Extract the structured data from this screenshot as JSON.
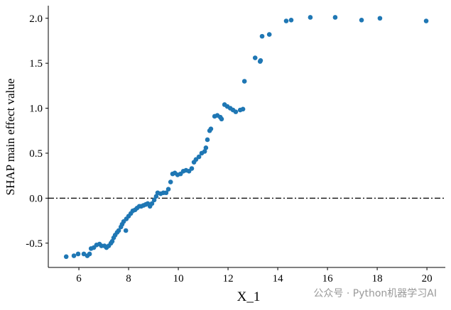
{
  "chart_data": {
    "type": "scatter",
    "xlabel": "X_1",
    "ylabel": "SHAP main effect value",
    "watermark": "公众号 · Python机器学习AI",
    "color": "#1f77b4",
    "hline": 0,
    "x": [
      5.49,
      5.8,
      5.97,
      6.2,
      6.34,
      6.43,
      6.49,
      6.6,
      6.71,
      6.83,
      6.91,
      7.03,
      7.11,
      7.2,
      7.29,
      7.34,
      7.4,
      7.46,
      7.54,
      7.6,
      7.69,
      7.74,
      7.8,
      7.89,
      7.91,
      8.0,
      8.09,
      8.17,
      8.26,
      8.34,
      8.43,
      8.51,
      8.6,
      8.69,
      8.77,
      8.86,
      8.94,
      9.03,
      9.11,
      9.17,
      9.29,
      9.4,
      9.51,
      9.6,
      9.69,
      9.77,
      9.86,
      9.97,
      10.09,
      10.2,
      10.31,
      10.43,
      10.54,
      10.63,
      10.71,
      10.83,
      10.94,
      11.06,
      11.11,
      11.17,
      11.26,
      11.31,
      11.46,
      11.57,
      11.69,
      11.74,
      11.86,
      11.97,
      12.09,
      12.2,
      12.31,
      12.49,
      12.6,
      12.66,
      13.09,
      13.29,
      13.31,
      13.37,
      13.66,
      14.34,
      14.54,
      15.31,
      16.31,
      17.37,
      18.11,
      19.97
    ],
    "values": [
      -0.65,
      -0.64,
      -0.62,
      -0.62,
      -0.64,
      -0.62,
      -0.56,
      -0.55,
      -0.52,
      -0.51,
      -0.53,
      -0.53,
      -0.55,
      -0.53,
      -0.5,
      -0.48,
      -0.44,
      -0.41,
      -0.38,
      -0.36,
      -0.32,
      -0.29,
      -0.26,
      -0.36,
      -0.23,
      -0.2,
      -0.17,
      -0.14,
      -0.13,
      -0.11,
      -0.09,
      -0.09,
      -0.08,
      -0.07,
      -0.06,
      -0.09,
      -0.06,
      -0.02,
      0.02,
      0.06,
      0.05,
      0.06,
      0.06,
      0.1,
      0.18,
      0.27,
      0.28,
      0.26,
      0.27,
      0.3,
      0.31,
      0.3,
      0.33,
      0.4,
      0.43,
      0.46,
      0.5,
      0.52,
      0.56,
      0.65,
      0.75,
      0.77,
      0.91,
      0.92,
      0.9,
      0.88,
      1.04,
      1.02,
      1.0,
      0.98,
      0.96,
      0.98,
      0.99,
      1.3,
      1.56,
      1.52,
      1.53,
      1.8,
      1.82,
      1.97,
      1.98,
      2.01,
      2.01,
      1.98,
      2.0,
      1.97
    ],
    "xlim": [
      4.77,
      20.74
    ],
    "ylim": [
      -0.77,
      2.14
    ],
    "xticks": [
      6,
      8,
      10,
      12,
      14,
      16,
      18,
      20
    ],
    "yticks": [
      {
        "value": -0.5,
        "label": "-0.5"
      },
      {
        "value": 0,
        "label": "0.0"
      },
      {
        "value": 0.5,
        "label": "0.5"
      },
      {
        "value": 1,
        "label": "1.0"
      },
      {
        "value": 1.5,
        "label": "1.5"
      },
      {
        "value": 2,
        "label": "2.0"
      }
    ]
  }
}
